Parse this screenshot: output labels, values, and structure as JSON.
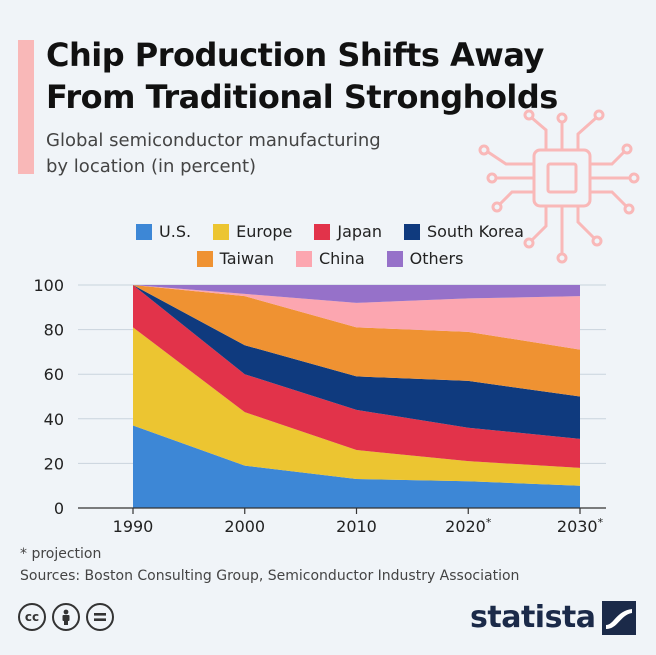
{
  "header": {
    "title_line1": "Chip Production Shifts Away",
    "title_line2": "From Traditional Strongholds",
    "subtitle_line1": "Global semiconductor manufacturing",
    "subtitle_line2": "by location (in percent)"
  },
  "colors": {
    "accent": "#f9b8b8",
    "chip_decoration": "#f9b8b8",
    "brand": "#1b2a49"
  },
  "chart_data": {
    "type": "area",
    "stacked": true,
    "x": [
      "1990",
      "2000",
      "2010",
      "2020*",
      "2030*"
    ],
    "ylim": [
      0,
      100
    ],
    "yticks": [
      0,
      20,
      40,
      60,
      80,
      100
    ],
    "grid": true,
    "legend_position": "top",
    "series": [
      {
        "name": "U.S.",
        "color": "#3d87d6",
        "values": [
          37,
          19,
          13,
          12,
          10
        ]
      },
      {
        "name": "Europe",
        "color": "#ecc531",
        "values": [
          44,
          24,
          13,
          9,
          8
        ]
      },
      {
        "name": "Japan",
        "color": "#e2334a",
        "values": [
          19,
          17,
          18,
          15,
          13
        ]
      },
      {
        "name": "South Korea",
        "color": "#0f3a7e",
        "values": [
          0,
          13,
          15,
          21,
          19
        ]
      },
      {
        "name": "Taiwan",
        "color": "#ef9232",
        "values": [
          0,
          22,
          22,
          22,
          21
        ]
      },
      {
        "name": "China",
        "color": "#fca6b0",
        "values": [
          0,
          1,
          11,
          15,
          24
        ]
      },
      {
        "name": "Others",
        "color": "#9671c9",
        "values": [
          0,
          4,
          8,
          6,
          5
        ]
      }
    ]
  },
  "footer": {
    "note": "* projection",
    "sources": "Sources: Boston Consulting Group, Semiconductor Industry Association",
    "brand": "statista",
    "license_icons": [
      "cc-icon",
      "by-person-icon",
      "nd-equals-icon"
    ]
  }
}
